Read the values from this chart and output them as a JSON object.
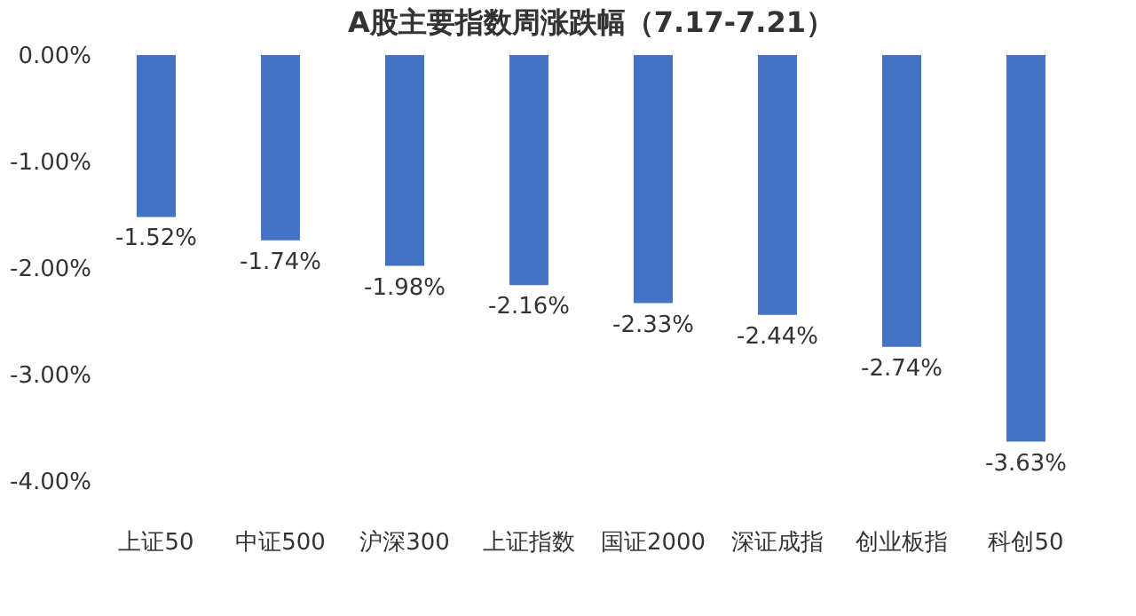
{
  "chart_data": {
    "type": "bar",
    "title": "A股主要指数周涨跌幅（7.17-7.21）",
    "categories": [
      "上证50",
      "中证500",
      "沪深300",
      "上证指数",
      "国证2000",
      "深证成指",
      "创业板指",
      "科创50"
    ],
    "values": [
      -1.52,
      -1.74,
      -1.98,
      -2.16,
      -2.33,
      -2.44,
      -2.74,
      -3.63
    ],
    "value_labels": [
      "-1.52%",
      "-1.74%",
      "-1.98%",
      "-2.16%",
      "-2.33%",
      "-2.44%",
      "-2.74%",
      "-3.63%"
    ],
    "color": "#4472c4",
    "ylim": [
      -4,
      0
    ],
    "yticks": [
      {
        "value": 0,
        "label": "0.00%"
      },
      {
        "value": -1,
        "label": "-1.00%"
      },
      {
        "value": -2,
        "label": "-2.00%"
      },
      {
        "value": -3,
        "label": "-3.00%"
      },
      {
        "value": -4,
        "label": "-4.00%"
      }
    ],
    "grid": false
  }
}
